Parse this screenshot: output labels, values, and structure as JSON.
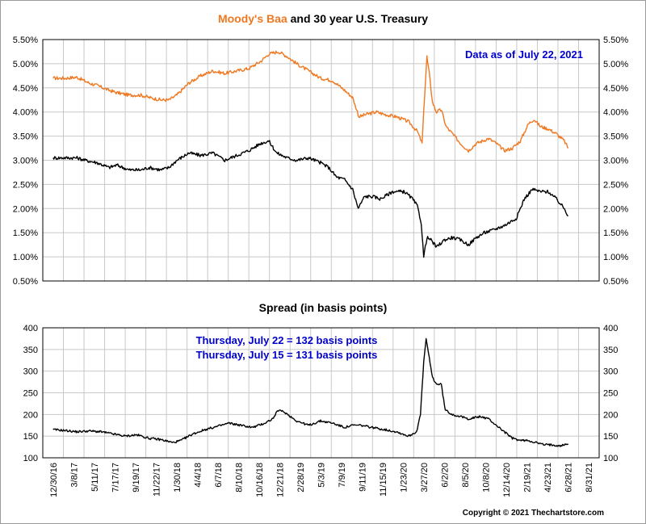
{
  "chart_data": [
    {
      "type": "line",
      "title_part1": "Moody's Baa",
      "title_part2": " and 30 year U.S. Treasury",
      "annotation": "Data as of July 22, 2021",
      "ylim": [
        0.5,
        5.5
      ],
      "y_ticks": [
        "5.50%",
        "5.00%",
        "4.50%",
        "4.00%",
        "3.50%",
        "3.00%",
        "2.50%",
        "2.00%",
        "1.50%",
        "1.00%",
        "0.50%"
      ],
      "grid": true,
      "colors": {
        "baa": "#f07820",
        "treasury": "#000000"
      },
      "series": [
        {
          "key": "baa",
          "points": [
            [
              0,
              4.7
            ],
            [
              1.5,
              4.7
            ],
            [
              3,
              4.72
            ],
            [
              4.5,
              4.6
            ],
            [
              5.5,
              4.55
            ],
            [
              7,
              4.45
            ],
            [
              8,
              4.4
            ],
            [
              9.5,
              4.35
            ],
            [
              11,
              4.35
            ],
            [
              12,
              4.3
            ],
            [
              13.5,
              4.25
            ],
            [
              14.5,
              4.25
            ],
            [
              15.5,
              4.35
            ],
            [
              17,
              4.6
            ],
            [
              18.5,
              4.75
            ],
            [
              20,
              4.85
            ],
            [
              21.5,
              4.8
            ],
            [
              23,
              4.85
            ],
            [
              24.5,
              4.9
            ],
            [
              26,
              5.05
            ],
            [
              27,
              5.2
            ],
            [
              28.2,
              5.25
            ],
            [
              29.3,
              5.15
            ],
            [
              30.5,
              5.0
            ],
            [
              32,
              4.85
            ],
            [
              33.5,
              4.7
            ],
            [
              35,
              4.65
            ],
            [
              36.5,
              4.45
            ],
            [
              37.5,
              4.3
            ],
            [
              38.3,
              3.9
            ],
            [
              39.2,
              3.95
            ],
            [
              40.5,
              4.0
            ],
            [
              41.5,
              3.95
            ],
            [
              43,
              3.9
            ],
            [
              44.5,
              3.8
            ],
            [
              45.6,
              3.6
            ],
            [
              46.2,
              3.35
            ],
            [
              46.5,
              4.3
            ],
            [
              46.8,
              5.15
            ],
            [
              47.1,
              4.8
            ],
            [
              47.5,
              4.2
            ],
            [
              48,
              4.0
            ],
            [
              48.6,
              4.05
            ],
            [
              49.2,
              3.7
            ],
            [
              50,
              3.55
            ],
            [
              51,
              3.35
            ],
            [
              52,
              3.2
            ],
            [
              53,
              3.35
            ],
            [
              54.5,
              3.45
            ],
            [
              55.5,
              3.35
            ],
            [
              56.5,
              3.2
            ],
            [
              57.5,
              3.25
            ],
            [
              58.5,
              3.4
            ],
            [
              59.5,
              3.75
            ],
            [
              60.2,
              3.85
            ],
            [
              61,
              3.7
            ],
            [
              62,
              3.65
            ],
            [
              63,
              3.55
            ],
            [
              64,
              3.4
            ],
            [
              64.5,
              3.25
            ]
          ]
        },
        {
          "key": "treasury",
          "points": [
            [
              0,
              3.05
            ],
            [
              1.5,
              3.05
            ],
            [
              3,
              3.05
            ],
            [
              4,
              3.0
            ],
            [
              5.5,
              2.95
            ],
            [
              7,
              2.85
            ],
            [
              8,
              2.9
            ],
            [
              9.5,
              2.8
            ],
            [
              11,
              2.8
            ],
            [
              12,
              2.85
            ],
            [
              13.5,
              2.8
            ],
            [
              14.5,
              2.85
            ],
            [
              15.5,
              3.0
            ],
            [
              17,
              3.15
            ],
            [
              18.5,
              3.1
            ],
            [
              20,
              3.15
            ],
            [
              21.5,
              3.0
            ],
            [
              23,
              3.1
            ],
            [
              24.5,
              3.2
            ],
            [
              26,
              3.35
            ],
            [
              27,
              3.4
            ],
            [
              28,
              3.15
            ],
            [
              29.3,
              3.05
            ],
            [
              30.5,
              3.0
            ],
            [
              32,
              3.05
            ],
            [
              33.5,
              2.95
            ],
            [
              34.5,
              2.85
            ],
            [
              35.5,
              2.65
            ],
            [
              36.5,
              2.6
            ],
            [
              37.5,
              2.4
            ],
            [
              38.2,
              2.0
            ],
            [
              39,
              2.25
            ],
            [
              40,
              2.25
            ],
            [
              41,
              2.2
            ],
            [
              42.5,
              2.35
            ],
            [
              44,
              2.35
            ],
            [
              45,
              2.2
            ],
            [
              45.6,
              2.05
            ],
            [
              46.1,
              1.7
            ],
            [
              46.4,
              1.0
            ],
            [
              46.8,
              1.4
            ],
            [
              47.3,
              1.35
            ],
            [
              48,
              1.2
            ],
            [
              49,
              1.35
            ],
            [
              50,
              1.4
            ],
            [
              51,
              1.35
            ],
            [
              52,
              1.25
            ],
            [
              53,
              1.4
            ],
            [
              54,
              1.5
            ],
            [
              55,
              1.55
            ],
            [
              56.5,
              1.65
            ],
            [
              58,
              1.8
            ],
            [
              59,
              2.2
            ],
            [
              60,
              2.4
            ],
            [
              61,
              2.35
            ],
            [
              62,
              2.35
            ],
            [
              63,
              2.2
            ],
            [
              64,
              2.0
            ],
            [
              64.5,
              1.85
            ]
          ]
        }
      ]
    },
    {
      "type": "line",
      "title": "Spread (in basis points)",
      "annotations": [
        "Thursday, July 22 = 132 basis points",
        "Thursday, July 15 = 131 basis points"
      ],
      "ylim": [
        100,
        400
      ],
      "y_ticks": [
        "400",
        "350",
        "300",
        "250",
        "200",
        "150",
        "100"
      ],
      "grid": true,
      "x_tick_labels": [
        "12/30/16",
        "3/8/17",
        "5/11/17",
        "7/17/17",
        "9/19/17",
        "11/22/17",
        "1/30/18",
        "4/4/18",
        "6/7/18",
        "8/10/18",
        "10/16/18",
        "12/21/18",
        "2/28/19",
        "5/3/19",
        "7/9/19",
        "9/11/19",
        "11/15/19",
        "1/23/20",
        "3/27/20",
        "6/2/20",
        "8/5/20",
        "10/8/20",
        "12/14/20",
        "2/19/21",
        "4/23/21",
        "6/28/21",
        "8/31/21"
      ],
      "series": [
        {
          "key": "spread",
          "color": "#000000",
          "points": [
            [
              0,
              165
            ],
            [
              1.5,
              163
            ],
            [
              3,
              160
            ],
            [
              4.5,
              162
            ],
            [
              6,
              160
            ],
            [
              7.5,
              155
            ],
            [
              9,
              150
            ],
            [
              10.5,
              153
            ],
            [
              12,
              145
            ],
            [
              13.5,
              142
            ],
            [
              15,
              135
            ],
            [
              16,
              140
            ],
            [
              17.5,
              155
            ],
            [
              19,
              165
            ],
            [
              20.5,
              172
            ],
            [
              22,
              180
            ],
            [
              23.5,
              175
            ],
            [
              25,
              170
            ],
            [
              26.5,
              180
            ],
            [
              27.5,
              190
            ],
            [
              28.2,
              210
            ],
            [
              29,
              205
            ],
            [
              30.5,
              185
            ],
            [
              32,
              175
            ],
            [
              33.5,
              185
            ],
            [
              35,
              180
            ],
            [
              36.5,
              170
            ],
            [
              37.5,
              175
            ],
            [
              38.5,
              175
            ],
            [
              40,
              170
            ],
            [
              41.5,
              165
            ],
            [
              43,
              160
            ],
            [
              44.5,
              150
            ],
            [
              45.5,
              160
            ],
            [
              46,
              200
            ],
            [
              46.4,
              320
            ],
            [
              46.7,
              375
            ],
            [
              47.1,
              330
            ],
            [
              47.5,
              285
            ],
            [
              48,
              270
            ],
            [
              48.6,
              270
            ],
            [
              49.1,
              210
            ],
            [
              50,
              200
            ],
            [
              51,
              195
            ],
            [
              52,
              190
            ],
            [
              53.5,
              195
            ],
            [
              54.5,
              190
            ],
            [
              55.5,
              175
            ],
            [
              56.5,
              160
            ],
            [
              57.5,
              145
            ],
            [
              58.5,
              140
            ],
            [
              59.5,
              140
            ],
            [
              60.5,
              135
            ],
            [
              61.5,
              130
            ],
            [
              62.5,
              130
            ],
            [
              63.5,
              128
            ],
            [
              64.5,
              132
            ]
          ]
        }
      ]
    }
  ],
  "copyright": "Copyright © 2021 Thechartstore.com"
}
